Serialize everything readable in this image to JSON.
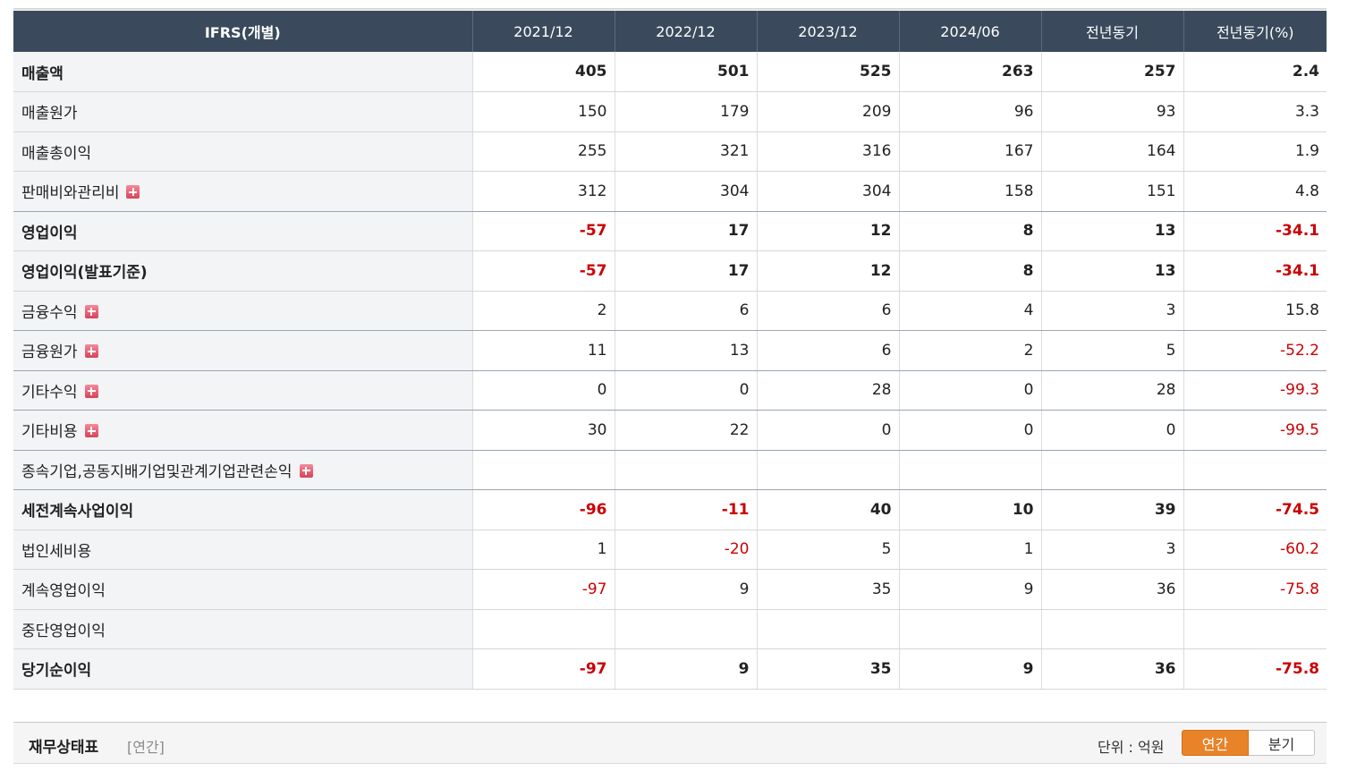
{
  "table": {
    "headers": [
      "IFRS(개별)",
      "2021/12",
      "2022/12",
      "2023/12",
      "2024/06",
      "전년동기",
      "전년동기(%)"
    ],
    "rows": [
      {
        "label": "매출액",
        "values": [
          "405",
          "501",
          "525",
          "263",
          "257",
          "2.4"
        ]
      },
      {
        "label": "매출원가",
        "values": [
          "150",
          "179",
          "209",
          "96",
          "93",
          "3.3"
        ]
      },
      {
        "label": "매출총이익",
        "values": [
          "255",
          "321",
          "316",
          "167",
          "164",
          "1.9"
        ]
      },
      {
        "label": "판매비와관리비",
        "values": [
          "312",
          "304",
          "304",
          "158",
          "151",
          "4.8"
        ]
      },
      {
        "label": "영업이익",
        "values": [
          "-57",
          "17",
          "12",
          "8",
          "13",
          "-34.1"
        ]
      },
      {
        "label": "영업이익(발표기준)",
        "values": [
          "-57",
          "17",
          "12",
          "8",
          "13",
          "-34.1"
        ]
      },
      {
        "label": "금융수익",
        "values": [
          "2",
          "6",
          "6",
          "4",
          "3",
          "15.8"
        ]
      },
      {
        "label": "금융원가",
        "values": [
          "11",
          "13",
          "6",
          "2",
          "5",
          "-52.2"
        ]
      },
      {
        "label": "기타수익",
        "values": [
          "0",
          "0",
          "28",
          "0",
          "28",
          "-99.3"
        ]
      },
      {
        "label": "기타비용",
        "values": [
          "30",
          "22",
          "0",
          "0",
          "0",
          "-99.5"
        ]
      },
      {
        "label": "종속기업,공동지배기업및관계기업관련손익",
        "values": [
          "",
          "",
          "",
          "",
          "",
          ""
        ]
      },
      {
        "label": "세전계속사업이익",
        "values": [
          "-96",
          "-11",
          "40",
          "10",
          "39",
          "-74.5"
        ]
      },
      {
        "label": "법인세비용",
        "values": [
          "1",
          "-20",
          "5",
          "1",
          "3",
          "-60.2"
        ]
      },
      {
        "label": "계속영업이익",
        "values": [
          "-97",
          "9",
          "35",
          "9",
          "36",
          "-75.8"
        ]
      },
      {
        "label": "중단영업이익",
        "values": [
          "",
          "",
          "",
          "",
          "",
          ""
        ]
      },
      {
        "label": "당기순이익",
        "values": [
          "-97",
          "9",
          "35",
          "9",
          "36",
          "-75.8"
        ]
      }
    ]
  },
  "balance_sheet": {
    "title": "재무상태표",
    "period": "[연간]",
    "unit": "단위 : 억원",
    "toggle_annual": "연간",
    "toggle_quarter": "분기"
  },
  "colors": {
    "header_bg": "#3a4a5c",
    "negative": "#cc0000",
    "toggle_active": "#e8832a"
  },
  "icons": {
    "expand": "plus-box-icon"
  }
}
